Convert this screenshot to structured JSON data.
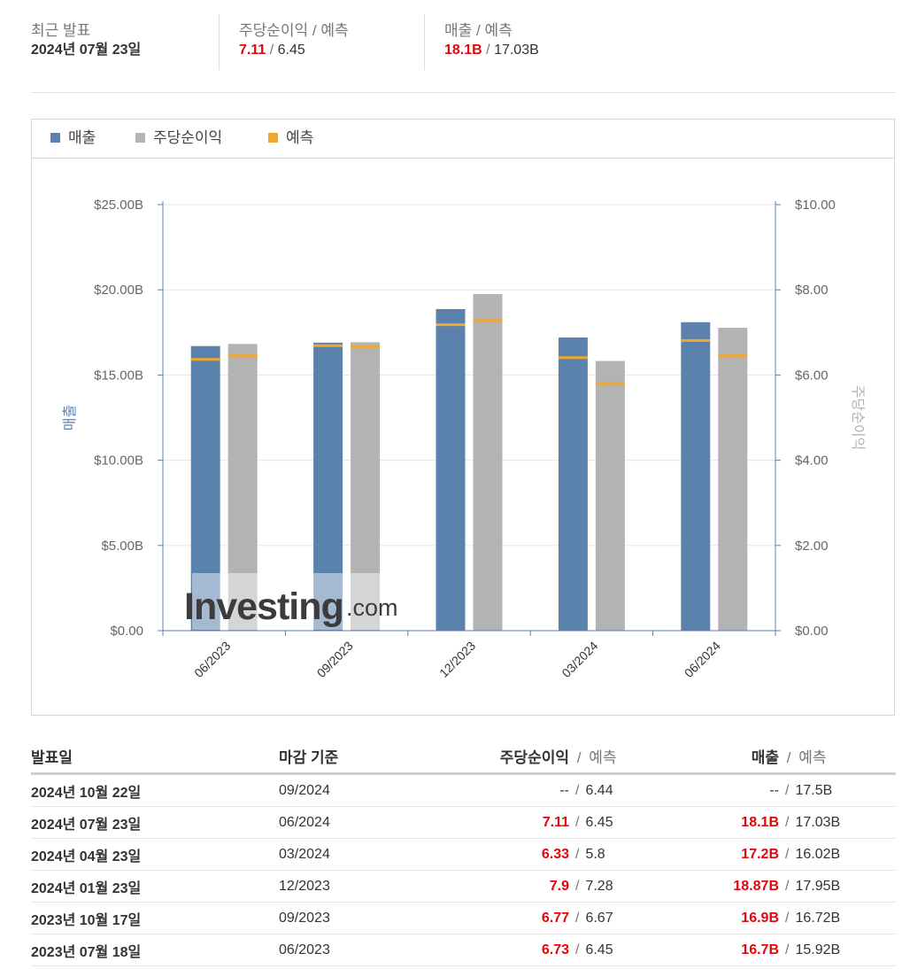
{
  "summary": {
    "latest_label": "최근 발표",
    "latest_date": "2024년 07월 23일",
    "eps_label": "주당순이익 / 예측",
    "eps_actual": "7.11",
    "eps_forecast": "6.45",
    "rev_label": "매출 / 예측",
    "rev_actual": "18.1B",
    "rev_forecast": "17.03B",
    "slash": "/"
  },
  "legend": {
    "revenue": "매출",
    "eps": "주당순이익",
    "forecast": "예측"
  },
  "colors": {
    "revenue": "#5b82ad",
    "eps": "#b3b3b3",
    "forecast": "#f0a830",
    "red": "#e1070d"
  },
  "watermark": {
    "brand": "Investing",
    "suffix": ".com"
  },
  "chart_data": {
    "type": "bar",
    "categories": [
      "06/2023",
      "09/2023",
      "12/2023",
      "03/2024",
      "06/2024"
    ],
    "series": [
      {
        "name": "매출",
        "axis": "left",
        "values": [
          16.7,
          16.9,
          18.87,
          17.2,
          18.1
        ],
        "forecast": [
          15.92,
          16.72,
          17.95,
          16.02,
          17.03
        ]
      },
      {
        "name": "주당순이익",
        "axis": "right",
        "values": [
          6.73,
          6.77,
          7.9,
          6.33,
          7.11
        ],
        "forecast": [
          6.45,
          6.67,
          7.28,
          5.8,
          6.45
        ]
      }
    ],
    "ylabel_left": "매출",
    "ylabel_right": "주당순이익",
    "ylim_left": [
      0,
      25
    ],
    "ylim_right": [
      0,
      10
    ],
    "yticks_left": [
      "$0.00",
      "$5.00B",
      "$10.00B",
      "$15.00B",
      "$20.00B",
      "$25.00B"
    ],
    "yticks_right": [
      "$0.00",
      "$2.00",
      "$4.00",
      "$6.00",
      "$8.00",
      "$10.00"
    ],
    "grid": true,
    "legend_position": "top-left"
  },
  "table": {
    "headers": {
      "date": "발표일",
      "period": "마감 기준",
      "eps": "주당순이익",
      "eps_forecast": "예측",
      "rev": "매출",
      "rev_forecast": "예측"
    },
    "rows": [
      {
        "date": "2024년 10월 22일",
        "period": "09/2024",
        "eps": "--",
        "eps_forecast": "6.44",
        "rev": "--",
        "rev_forecast": "17.5B",
        "highlight": false
      },
      {
        "date": "2024년 07월 23일",
        "period": "06/2024",
        "eps": "7.11",
        "eps_forecast": "6.45",
        "rev": "18.1B",
        "rev_forecast": "17.03B",
        "highlight": true
      },
      {
        "date": "2024년 04월 23일",
        "period": "03/2024",
        "eps": "6.33",
        "eps_forecast": "5.8",
        "rev": "17.2B",
        "rev_forecast": "16.02B",
        "highlight": true
      },
      {
        "date": "2024년 01월 23일",
        "period": "12/2023",
        "eps": "7.9",
        "eps_forecast": "7.28",
        "rev": "18.87B",
        "rev_forecast": "17.95B",
        "highlight": true
      },
      {
        "date": "2023년 10월 17일",
        "period": "09/2023",
        "eps": "6.77",
        "eps_forecast": "6.67",
        "rev": "16.9B",
        "rev_forecast": "16.72B",
        "highlight": true
      },
      {
        "date": "2023년 07월 18일",
        "period": "06/2023",
        "eps": "6.73",
        "eps_forecast": "6.45",
        "rev": "16.7B",
        "rev_forecast": "15.92B",
        "highlight": true
      }
    ]
  }
}
